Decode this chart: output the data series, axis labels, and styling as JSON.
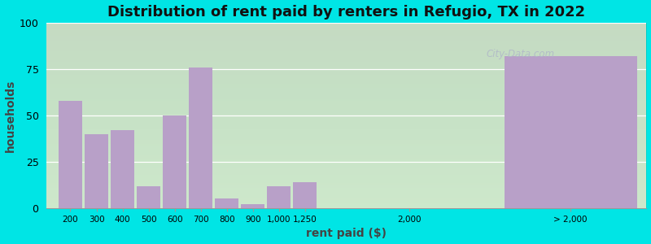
{
  "title": "Distribution of rent paid by renters in Refugio, TX in 2022",
  "xlabel": "rent paid ($)",
  "ylabel": "households",
  "bar_color": "#b8a0c8",
  "background_color_top": "#e8f5e0",
  "background_color_bottom": "#f0f8e8",
  "outer_background": "#00e5e5",
  "bar_labels": [
    "200",
    "300",
    "400",
    "500",
    "600",
    "700",
    "800",
    "900",
    "1,000",
    "1,250",
    "2,000",
    "> 2,000"
  ],
  "bar_values": [
    58,
    40,
    42,
    12,
    50,
    76,
    5,
    2,
    12,
    14,
    0,
    82
  ],
  "ylim": [
    0,
    100
  ],
  "yticks": [
    0,
    25,
    50,
    75,
    100
  ],
  "title_fontsize": 13,
  "axis_label_fontsize": 10
}
